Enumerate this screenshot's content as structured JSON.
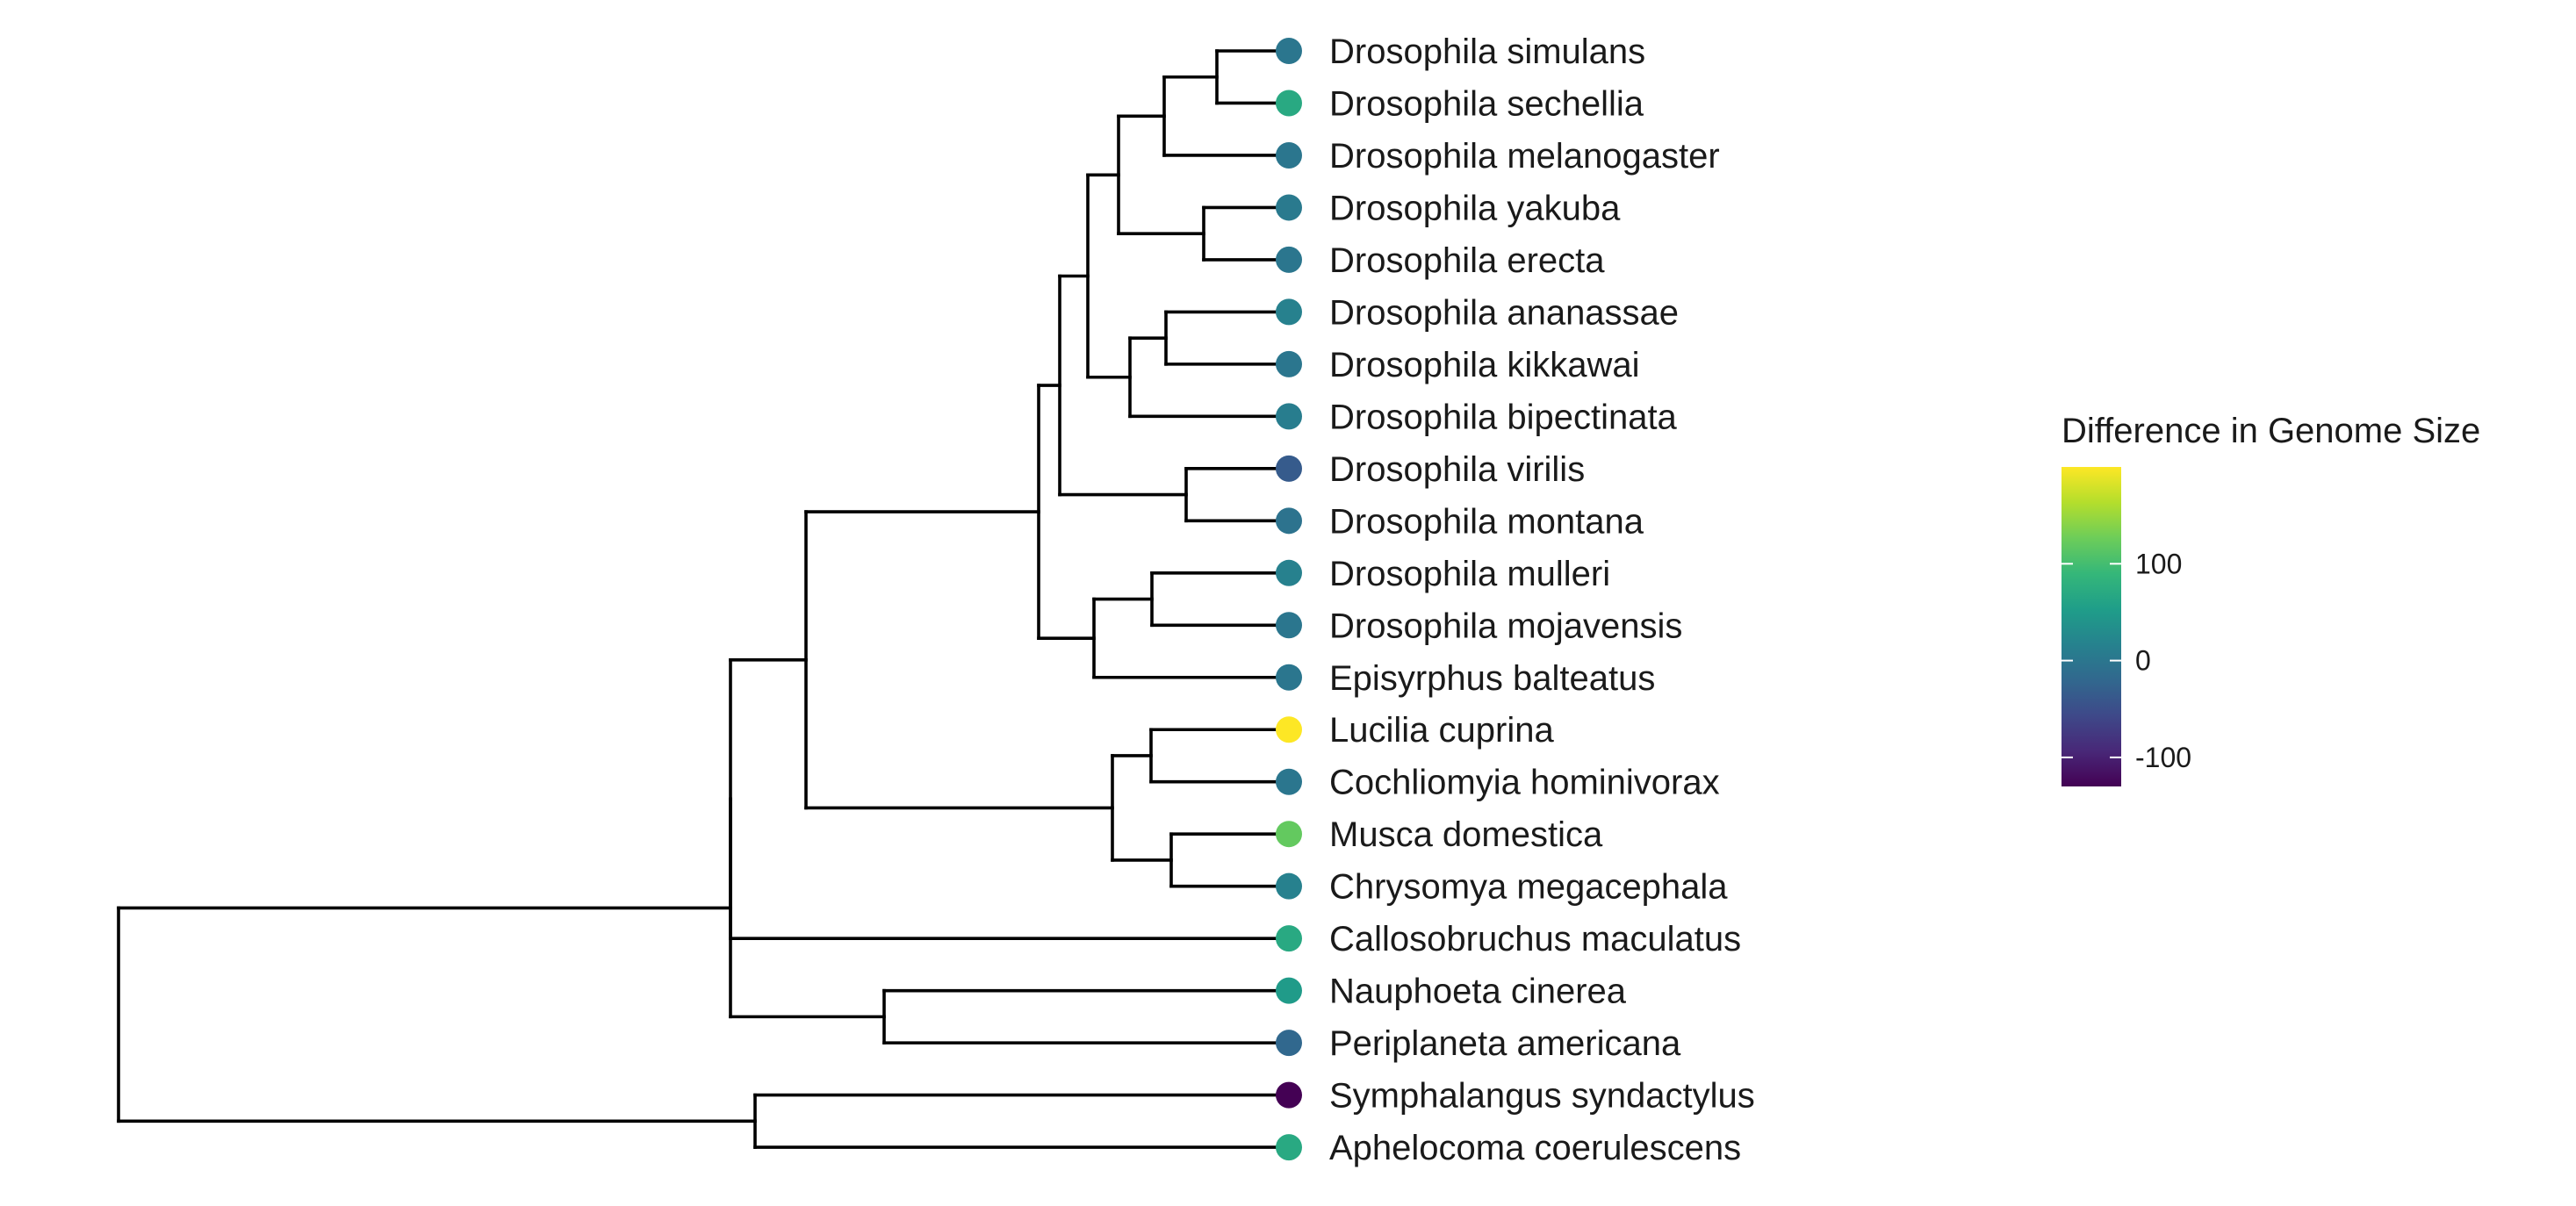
{
  "tree": {
    "name": "root",
    "children": [
      {
        "name": "n1",
        "children": [
          {
            "name": "n2",
            "children": [
              {
                "name": "n3",
                "children": [
                  {
                    "name": "n4",
                    "children": [
                      {
                        "name": "n5",
                        "children": [
                          {
                            "name": "n6",
                            "children": [
                              {
                                "name": "n7",
                                "children": [
                                  {
                                    "name": "n8",
                                    "children": [
                                      {
                                        "name": "Drosophila simulans",
                                        "tip": 0,
                                        "value": 0
                                      },
                                      {
                                        "name": "Drosophila sechellia",
                                        "tip": 1,
                                        "value": 70
                                      }
                                    ]
                                  },
                                  {
                                    "name": "Drosophila melanogaster",
                                    "tip": 2,
                                    "value": 0
                                  }
                                ]
                              },
                              {
                                "name": "n9",
                                "children": [
                                  {
                                    "name": "Drosophila yakuba",
                                    "tip": 3,
                                    "value": 5
                                  },
                                  {
                                    "name": "Drosophila erecta",
                                    "tip": 4,
                                    "value": 0
                                  }
                                ]
                              }
                            ]
                          },
                          {
                            "name": "n10",
                            "children": [
                              {
                                "name": "n11",
                                "children": [
                                  {
                                    "name": "Drosophila ananassae",
                                    "tip": 5,
                                    "value": 15
                                  },
                                  {
                                    "name": "Drosophila kikkawai",
                                    "tip": 6,
                                    "value": 0
                                  }
                                ]
                              },
                              {
                                "name": "Drosophila bipectinata",
                                "tip": 7,
                                "value": 10
                              }
                            ]
                          }
                        ]
                      },
                      {
                        "name": "n12",
                        "children": [
                          {
                            "name": "Drosophila virilis",
                            "tip": 8,
                            "value": -35
                          },
                          {
                            "name": "Drosophila montana",
                            "tip": 9,
                            "value": -5
                          }
                        ]
                      }
                    ]
                  },
                  {
                    "name": "n13",
                    "children": [
                      {
                        "name": "n14",
                        "children": [
                          {
                            "name": "Drosophila mulleri",
                            "tip": 10,
                            "value": 15
                          },
                          {
                            "name": "Drosophila mojavensis",
                            "tip": 11,
                            "value": 0
                          }
                        ]
                      },
                      {
                        "name": "Episyrphus balteatus",
                        "tip": 12,
                        "value": 0
                      }
                    ]
                  }
                ]
              },
              {
                "name": "n15",
                "children": [
                  {
                    "name": "n16",
                    "children": [
                      {
                        "name": "Lucilia cuprina",
                        "tip": 13,
                        "value": 200
                      },
                      {
                        "name": "Cochliomyia hominivorax",
                        "tip": 14,
                        "value": 0
                      }
                    ]
                  },
                  {
                    "name": "n17",
                    "children": [
                      {
                        "name": "Musca domestica",
                        "tip": 15,
                        "value": 120
                      },
                      {
                        "name": "Chrysomya megacephala",
                        "tip": 16,
                        "value": 15
                      }
                    ]
                  }
                ]
              }
            ]
          },
          {
            "name": "Callosobruchus maculatus",
            "tip": 17,
            "value": 70
          }
        ]
      },
      {
        "name": "n18",
        "children": [
          {
            "name": "Nauphoeta cinerea",
            "tip": 18,
            "value": 50
          },
          {
            "name": "Periplaneta americana",
            "tip": 19,
            "value": -20
          }
        ]
      }
    ]
  },
  "outgroup": {
    "name": "n19",
    "children": [
      {
        "name": "Symphalangus syndactylus",
        "tip": 20,
        "value": -130
      },
      {
        "name": "Aphelocoma coerulescens",
        "tip": 21,
        "value": 70
      }
    ]
  },
  "legend": {
    "title": "Difference in Genome Size",
    "ticks": [
      {
        "label": "100",
        "value": 100
      },
      {
        "label": "0",
        "value": 0
      },
      {
        "label": "-100",
        "value": -100
      }
    ],
    "range": [
      -130,
      200
    ],
    "palette": [
      "#440154",
      "#482878",
      "#3E4989",
      "#31688E",
      "#26828E",
      "#1F9E89",
      "#35B779",
      "#6DCD59",
      "#B4DE2C",
      "#FDE725"
    ]
  }
}
